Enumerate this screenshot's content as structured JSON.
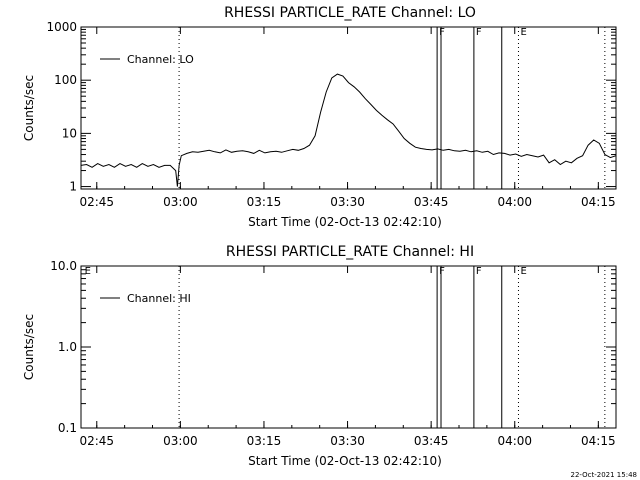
{
  "footer": {
    "timestamp": "22-Oct-2021 15:48"
  },
  "chart_data": [
    {
      "type": "line",
      "title": "RHESSI PARTICLE_RATE Channel: LO",
      "xlabel": "Start Time (02-Oct-13 02:42:10)",
      "ylabel": "Counts/sec",
      "yscale": "log",
      "ylim": [
        0.9,
        1000
      ],
      "xlim_min_from_start": [
        0,
        96
      ],
      "yticks": [
        {
          "value": 1,
          "label": "1"
        },
        {
          "value": 10,
          "label": "10"
        },
        {
          "value": 100,
          "label": "100"
        },
        {
          "value": 1000,
          "label": "1000"
        }
      ],
      "xticks": [
        {
          "value": 2.83,
          "label": "02:45"
        },
        {
          "value": 17.83,
          "label": "03:00"
        },
        {
          "value": 32.83,
          "label": "03:15"
        },
        {
          "value": 47.83,
          "label": "03:30"
        },
        {
          "value": 62.83,
          "label": "03:45"
        },
        {
          "value": 77.83,
          "label": "04:00"
        },
        {
          "value": 92.83,
          "label": "04:15"
        }
      ],
      "legend": {
        "position": "top-left",
        "entries": [
          "Channel: LO"
        ]
      },
      "markers": [
        {
          "x": 17.6,
          "style": "dotted",
          "label": ""
        },
        {
          "x": 63.9,
          "style": "solid",
          "label": "F"
        },
        {
          "x": 64.6,
          "style": "solid",
          "label": ""
        },
        {
          "x": 70.5,
          "style": "solid",
          "label": "F"
        },
        {
          "x": 75.5,
          "style": "solid",
          "label": ""
        },
        {
          "x": 78.5,
          "style": "dotted",
          "label": "E"
        },
        {
          "x": 94.0,
          "style": "dotted",
          "label": ""
        }
      ],
      "series": [
        {
          "name": "Channel: LO",
          "x": [
            0,
            1,
            2,
            3,
            4,
            5,
            6,
            7,
            8,
            9,
            10,
            11,
            12,
            13,
            14,
            15,
            16,
            17,
            17.3,
            17.6,
            18,
            19,
            20,
            21,
            22,
            23,
            24,
            25,
            26,
            27,
            28,
            29,
            30,
            31,
            32,
            33,
            34,
            35,
            36,
            37,
            38,
            39,
            40,
            41,
            42,
            43,
            44,
            45,
            46,
            47,
            48,
            49,
            50,
            51,
            52,
            53,
            54,
            55,
            56,
            57,
            58,
            59,
            60,
            61,
            62,
            63,
            64,
            65,
            66,
            67,
            68,
            69,
            70,
            71,
            72,
            73,
            74,
            75,
            76,
            77,
            78,
            79,
            80,
            81,
            82,
            83,
            84,
            85,
            86,
            87,
            88,
            89,
            90,
            91,
            92,
            93,
            94,
            95,
            96
          ],
          "values": [
            2.5,
            2.6,
            2.3,
            2.7,
            2.4,
            2.6,
            2.3,
            2.7,
            2.4,
            2.6,
            2.3,
            2.7,
            2.4,
            2.6,
            2.3,
            2.5,
            2.5,
            2.0,
            1.0,
            2.5,
            3.8,
            4.2,
            4.5,
            4.4,
            4.6,
            4.8,
            4.5,
            4.3,
            4.9,
            4.4,
            4.6,
            4.7,
            4.5,
            4.2,
            4.8,
            4.3,
            4.5,
            4.6,
            4.4,
            4.7,
            5.0,
            4.8,
            5.2,
            6.0,
            9.0,
            25.0,
            60.0,
            110.0,
            130.0,
            120.0,
            90.0,
            75.0,
            60.0,
            45.0,
            35.0,
            27.0,
            22.0,
            18.0,
            15.0,
            11.0,
            8.0,
            6.5,
            5.5,
            5.2,
            5.0,
            4.9,
            5.1,
            4.8,
            5.0,
            4.7,
            4.6,
            4.8,
            4.5,
            4.7,
            4.4,
            4.6,
            4.0,
            4.3,
            4.2,
            3.9,
            4.1,
            3.7,
            4.0,
            3.8,
            3.6,
            3.9,
            2.8,
            3.2,
            2.6,
            3.0,
            2.8,
            3.4,
            3.8,
            6.0,
            7.5,
            6.5,
            4.0,
            3.5,
            3.8
          ]
        }
      ]
    },
    {
      "type": "line",
      "title": "RHESSI PARTICLE_RATE Channel: HI",
      "xlabel": "Start Time (02-Oct-13 02:42:10)",
      "ylabel": "Counts/sec",
      "yscale": "log",
      "ylim": [
        0.1,
        10
      ],
      "xlim_min_from_start": [
        0,
        96
      ],
      "yticks": [
        {
          "value": 0.1,
          "label": "0.1"
        },
        {
          "value": 1,
          "label": "1.0"
        },
        {
          "value": 10,
          "label": "10.0"
        }
      ],
      "xticks": [
        {
          "value": 2.83,
          "label": "02:45"
        },
        {
          "value": 17.83,
          "label": "03:00"
        },
        {
          "value": 32.83,
          "label": "03:15"
        },
        {
          "value": 47.83,
          "label": "03:30"
        },
        {
          "value": 62.83,
          "label": "03:45"
        },
        {
          "value": 77.83,
          "label": "04:00"
        },
        {
          "value": 92.83,
          "label": "04:15"
        }
      ],
      "legend": {
        "position": "top-left",
        "entries": [
          "Channel: HI"
        ]
      },
      "markers": [
        {
          "x": 0.3,
          "style": "none",
          "label": "E"
        },
        {
          "x": 17.6,
          "style": "dotted",
          "label": ""
        },
        {
          "x": 63.9,
          "style": "solid",
          "label": "F"
        },
        {
          "x": 64.6,
          "style": "solid",
          "label": ""
        },
        {
          "x": 70.5,
          "style": "solid",
          "label": "F"
        },
        {
          "x": 75.5,
          "style": "solid",
          "label": ""
        },
        {
          "x": 78.5,
          "style": "dotted",
          "label": "E"
        },
        {
          "x": 94.0,
          "style": "dotted",
          "label": ""
        }
      ],
      "series": [
        {
          "name": "Channel: HI",
          "x": [],
          "values": []
        }
      ]
    }
  ]
}
